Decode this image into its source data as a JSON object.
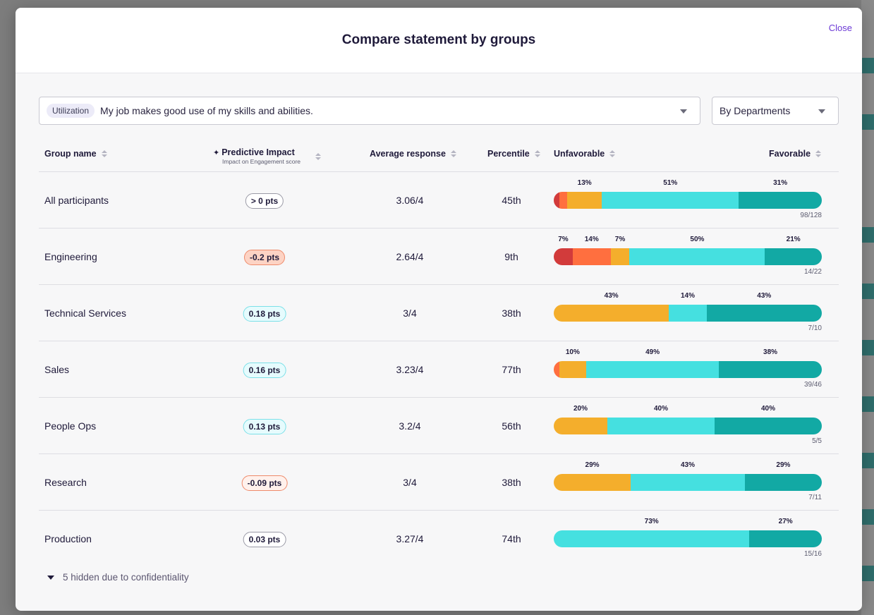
{
  "modal": {
    "title": "Compare statement by groups",
    "close_label": "Close"
  },
  "filters": {
    "statement_category": "Utilization",
    "statement_text": "My job makes good use of my skills and abilities.",
    "group_by": "By Departments"
  },
  "table": {
    "headers": {
      "group_name": "Group name",
      "predictive_impact": "Predictive Impact",
      "predictive_impact_sub": "Impact on Engagement score",
      "average_response": "Average response",
      "percentile": "Percentile",
      "unfavorable": "Unfavorable",
      "favorable": "Favorable"
    },
    "rows": [
      {
        "group": "All participants",
        "impact": "> 0 pts",
        "impact_kind": "neutral",
        "average": "3.06/4",
        "percentile": "45th",
        "count": "98/128",
        "distribution": [
          {
            "share": 2,
            "label": ""
          },
          {
            "share": 3,
            "label": ""
          },
          {
            "share": 13,
            "label": "13%"
          },
          {
            "share": 51,
            "label": "51%"
          },
          {
            "share": 31,
            "label": "31%"
          }
        ]
      },
      {
        "group": "Engineering",
        "impact": "-0.2 pts",
        "impact_kind": "negative-strong",
        "average": "2.64/4",
        "percentile": "9th",
        "count": "14/22",
        "distribution": [
          {
            "share": 7,
            "label": "7%"
          },
          {
            "share": 14,
            "label": "14%"
          },
          {
            "share": 7,
            "label": "7%"
          },
          {
            "share": 50,
            "label": "50%"
          },
          {
            "share": 21,
            "label": "21%"
          }
        ]
      },
      {
        "group": "Technical Services",
        "impact": "0.18 pts",
        "impact_kind": "positive",
        "average": "3/4",
        "percentile": "38th",
        "count": "7/10",
        "distribution": [
          {
            "share": 0,
            "label": ""
          },
          {
            "share": 0,
            "label": ""
          },
          {
            "share": 43,
            "label": "43%"
          },
          {
            "share": 14,
            "label": "14%"
          },
          {
            "share": 43,
            "label": "43%"
          }
        ]
      },
      {
        "group": "Sales",
        "impact": "0.16 pts",
        "impact_kind": "positive",
        "average": "3.23/4",
        "percentile": "77th",
        "count": "39/46",
        "distribution": [
          {
            "share": 0,
            "label": ""
          },
          {
            "share": 2,
            "label": ""
          },
          {
            "share": 10,
            "label": "10%"
          },
          {
            "share": 49,
            "label": "49%"
          },
          {
            "share": 38,
            "label": "38%"
          }
        ]
      },
      {
        "group": "People Ops",
        "impact": "0.13 pts",
        "impact_kind": "positive",
        "average": "3.2/4",
        "percentile": "56th",
        "count": "5/5",
        "distribution": [
          {
            "share": 0,
            "label": ""
          },
          {
            "share": 0,
            "label": ""
          },
          {
            "share": 20,
            "label": "20%"
          },
          {
            "share": 40,
            "label": "40%"
          },
          {
            "share": 40,
            "label": "40%"
          }
        ]
      },
      {
        "group": "Research",
        "impact": "-0.09 pts",
        "impact_kind": "negative-soft",
        "average": "3/4",
        "percentile": "38th",
        "count": "7/11",
        "distribution": [
          {
            "share": 0,
            "label": ""
          },
          {
            "share": 0,
            "label": ""
          },
          {
            "share": 29,
            "label": "29%"
          },
          {
            "share": 43,
            "label": "43%"
          },
          {
            "share": 29,
            "label": "29%"
          }
        ]
      },
      {
        "group": "Production",
        "impact": "0.03 pts",
        "impact_kind": "neutral",
        "average": "3.27/4",
        "percentile": "74th",
        "count": "15/16",
        "distribution": [
          {
            "share": 0,
            "label": ""
          },
          {
            "share": 0,
            "label": ""
          },
          {
            "share": 0,
            "label": ""
          },
          {
            "share": 73,
            "label": "73%"
          },
          {
            "share": 27,
            "label": "27%"
          }
        ]
      }
    ]
  },
  "segment_colors": [
    "#d23b3b",
    "#ff6f3f",
    "#f4ae2c",
    "#45e0e0",
    "#12a9a4"
  ],
  "hidden_note": "5 hidden due to confidentiality"
}
